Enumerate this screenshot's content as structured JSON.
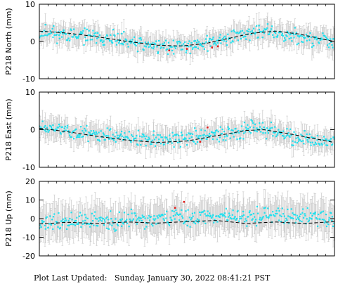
{
  "footer": {
    "label": "Plot Last Updated:",
    "timestamp": "Sunday, January 30, 2022 08:41:21 PST"
  },
  "colors": {
    "points": "#1fe0ee",
    "error_bars": "#c9c9c9",
    "model": "#000000",
    "outliers": "#e0201e"
  },
  "chart_data": [
    {
      "type": "scatter",
      "title": "",
      "ylabel": "P218 North (mm)",
      "xlabel": "",
      "ylim": [
        -10,
        10
      ],
      "yticks": [
        "10",
        "0",
        "-10"
      ],
      "grid": false,
      "error_bar_mm": 2.5,
      "series": [
        {
          "kind": "observations",
          "x_range": [
            0,
            1
          ],
          "y_trend": [
            [
              0,
              2.6
            ],
            [
              0.18,
              1.2
            ],
            [
              0.32,
              -0.4
            ],
            [
              0.45,
              -1.6
            ],
            [
              0.56,
              -0.6
            ],
            [
              0.68,
              1.8
            ],
            [
              0.77,
              2.8
            ],
            [
              0.88,
              1.2
            ],
            [
              1.0,
              -0.2
            ]
          ],
          "scatter_mm": 1.5,
          "n": 400,
          "seed": 11
        },
        {
          "kind": "model",
          "points": [
            [
              0,
              2.8
            ],
            [
              0.1,
              2.2
            ],
            [
              0.2,
              1.2
            ],
            [
              0.3,
              0.0
            ],
            [
              0.4,
              -1.0
            ],
            [
              0.48,
              -1.2
            ],
            [
              0.56,
              -0.6
            ],
            [
              0.64,
              0.8
            ],
            [
              0.72,
              2.2
            ],
            [
              0.8,
              2.8
            ],
            [
              0.88,
              2.0
            ],
            [
              0.95,
              0.8
            ],
            [
              1.0,
              0.0
            ]
          ]
        },
        {
          "kind": "outliers",
          "points": [
            [
              0.44,
              -2.4
            ],
            [
              0.5,
              -2.0
            ],
            [
              0.585,
              -1.6
            ],
            [
              0.605,
              -1.3
            ]
          ]
        }
      ]
    },
    {
      "type": "scatter",
      "title": "",
      "ylabel": "P218 East (mm)",
      "xlabel": "",
      "ylim": [
        -10,
        10
      ],
      "yticks": [
        "10",
        "0",
        "-10"
      ],
      "grid": false,
      "error_bar_mm": 2.5,
      "series": [
        {
          "kind": "observations",
          "x_range": [
            0,
            1
          ],
          "y_trend": [
            [
              0,
              1.0
            ],
            [
              0.15,
              -0.8
            ],
            [
              0.32,
              -2.4
            ],
            [
              0.45,
              -2.8
            ],
            [
              0.58,
              -1.4
            ],
            [
              0.68,
              -0.4
            ],
            [
              0.72,
              1.0
            ],
            [
              0.8,
              -1.0
            ],
            [
              0.9,
              -2.8
            ],
            [
              1.0,
              -3.6
            ]
          ],
          "scatter_mm": 1.5,
          "n": 400,
          "seed": 23
        },
        {
          "kind": "model",
          "points": [
            [
              0,
              0.4
            ],
            [
              0.1,
              -0.6
            ],
            [
              0.2,
              -1.8
            ],
            [
              0.3,
              -2.8
            ],
            [
              0.4,
              -3.4
            ],
            [
              0.5,
              -3.0
            ],
            [
              0.6,
              -1.6
            ],
            [
              0.7,
              -0.2
            ],
            [
              0.76,
              0.0
            ],
            [
              0.84,
              -1.0
            ],
            [
              0.92,
              -2.2
            ],
            [
              1.0,
              -3.4
            ]
          ]
        },
        {
          "kind": "outliers",
          "points": [
            [
              0.57,
              0.6
            ],
            [
              0.545,
              -3.2
            ]
          ]
        }
      ]
    },
    {
      "type": "scatter",
      "title": "",
      "ylabel": "P218 Up (mm)",
      "xlabel": "",
      "ylim": [
        -20,
        20
      ],
      "yticks": [
        "20",
        "10",
        "0",
        "-10",
        "-20"
      ],
      "grid": false,
      "error_bar_mm": 8,
      "series": [
        {
          "kind": "observations",
          "x_range": [
            0,
            1
          ],
          "y_trend": [
            [
              0,
              -2.0
            ],
            [
              0.3,
              -1.0
            ],
            [
              0.55,
              1.0
            ],
            [
              0.7,
              2.0
            ],
            [
              0.85,
              1.0
            ],
            [
              1.0,
              1.0
            ]
          ],
          "scatter_mm": 3.5,
          "n": 400,
          "seed": 37
        },
        {
          "kind": "model",
          "points": [
            [
              0,
              -2.8
            ],
            [
              0.1,
              -2.0
            ],
            [
              0.2,
              -2.6
            ],
            [
              0.3,
              -1.8
            ],
            [
              0.4,
              -2.4
            ],
            [
              0.5,
              -1.6
            ],
            [
              0.6,
              -1.0
            ],
            [
              0.7,
              -2.6
            ],
            [
              0.8,
              -1.8
            ],
            [
              0.9,
              -2.6
            ],
            [
              1.0,
              -1.6
            ]
          ]
        },
        {
          "kind": "outliers",
          "points": [
            [
              0.46,
              5.8
            ],
            [
              0.49,
              9.0
            ]
          ]
        }
      ]
    }
  ]
}
